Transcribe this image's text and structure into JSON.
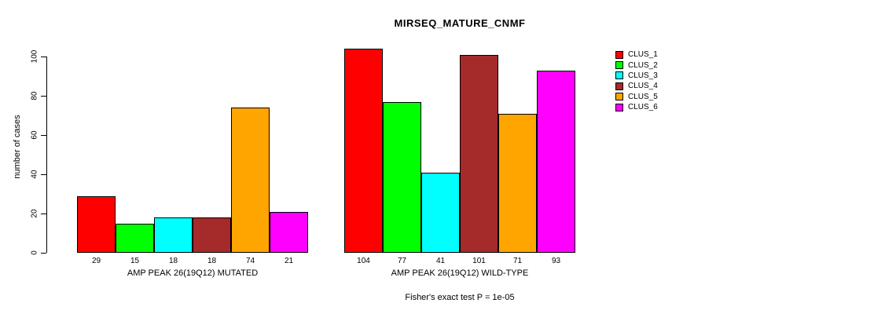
{
  "chart_data": {
    "type": "bar",
    "title": "MIRSEQ_MATURE_CNMF",
    "ylabel": "number of cases",
    "xlabel": "",
    "ylim": [
      0,
      104
    ],
    "yticks": [
      0,
      20,
      40,
      60,
      80,
      100
    ],
    "grid": false,
    "bar_outline_color": "#000000",
    "series": [
      {
        "name": "CLUS_1",
        "color": "#FF0000",
        "values": [
          29,
          104
        ]
      },
      {
        "name": "CLUS_2",
        "color": "#00FF00",
        "values": [
          15,
          77
        ]
      },
      {
        "name": "CLUS_3",
        "color": "#00FFFF",
        "values": [
          18,
          41
        ]
      },
      {
        "name": "CLUS_4",
        "color": "#A52A2A",
        "values": [
          18,
          101
        ]
      },
      {
        "name": "CLUS_5",
        "color": "#FFA500",
        "values": [
          74,
          71
        ]
      },
      {
        "name": "CLUS_6",
        "color": "#FF00FF",
        "values": [
          21,
          93
        ]
      }
    ],
    "groups": [
      {
        "label": "AMP PEAK 26(19Q12) MUTATED",
        "values": [
          29,
          15,
          18,
          18,
          74,
          21
        ]
      },
      {
        "label": "AMP PEAK 26(19Q12) WILD-TYPE",
        "values": [
          104,
          77,
          41,
          101,
          71,
          93
        ]
      }
    ],
    "legend": {
      "position": "right",
      "entries": [
        {
          "label": "CLUS_1",
          "color": "#FF0000"
        },
        {
          "label": "CLUS_2",
          "color": "#00FF00"
        },
        {
          "label": "CLUS_3",
          "color": "#00FFFF"
        },
        {
          "label": "CLUS_4",
          "color": "#A52A2A"
        },
        {
          "label": "CLUS_5",
          "color": "#FFA500"
        },
        {
          "label": "CLUS_6",
          "color": "#FF00FF"
        }
      ]
    },
    "footnote": "Fisher's exact test P = 1e-05"
  }
}
